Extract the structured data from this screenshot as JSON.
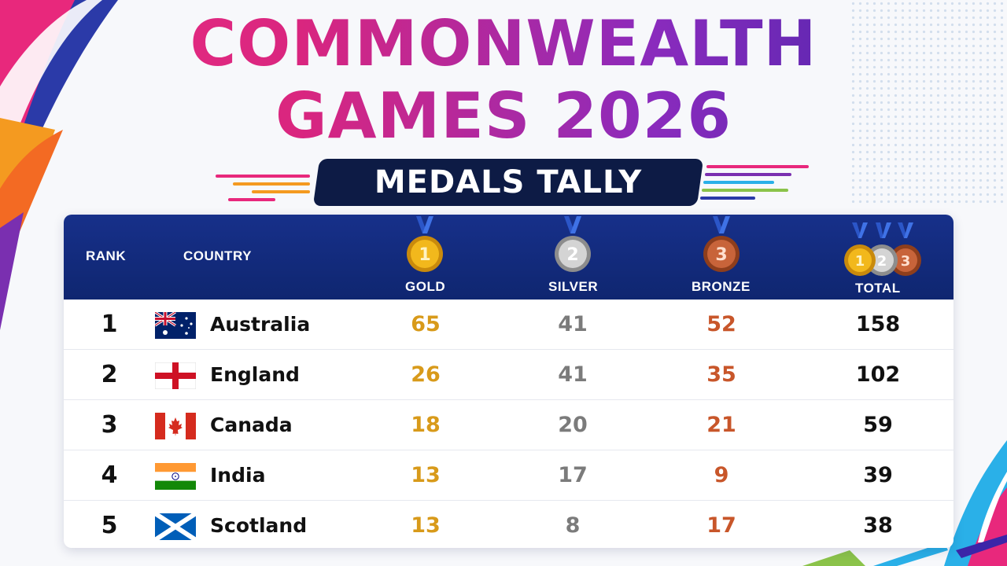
{
  "header": {
    "title_line1": "COMMONWEALTH",
    "title_line2": "GAMES 2026",
    "subtitle": "MEDALS TALLY"
  },
  "table": {
    "columns": {
      "rank": "RANK",
      "country": "COUNTRY",
      "gold": "GOLD",
      "silver": "SILVER",
      "bronze": "BRONZE",
      "total": "TOTAL"
    },
    "medal_numbers": {
      "gold": "1",
      "silver": "2",
      "bronze": "3"
    },
    "rows": [
      {
        "rank": "1",
        "country": "Australia",
        "flag": "australia-flag-icon",
        "gold": "65",
        "silver": "41",
        "bronze": "52",
        "total": "158"
      },
      {
        "rank": "2",
        "country": "England",
        "flag": "england-flag-icon",
        "gold": "26",
        "silver": "41",
        "bronze": "35",
        "total": "102"
      },
      {
        "rank": "3",
        "country": "Canada",
        "flag": "canada-flag-icon",
        "gold": "18",
        "silver": "20",
        "bronze": "21",
        "total": "59"
      },
      {
        "rank": "4",
        "country": "India",
        "flag": "india-flag-icon",
        "gold": "13",
        "silver": "17",
        "bronze": "9",
        "total": "39"
      },
      {
        "rank": "5",
        "country": "Scotland",
        "flag": "scotland-flag-icon",
        "gold": "13",
        "silver": "8",
        "bronze": "17",
        "total": "38"
      }
    ]
  },
  "colors": {
    "header_bg": "#17308a",
    "gold": "#d89a1a",
    "silver": "#7b7b7b",
    "bronze": "#c8562a",
    "title_start": "#ec2c83",
    "title_end": "#3b25a8",
    "banner_bg": "#0d1b45"
  }
}
